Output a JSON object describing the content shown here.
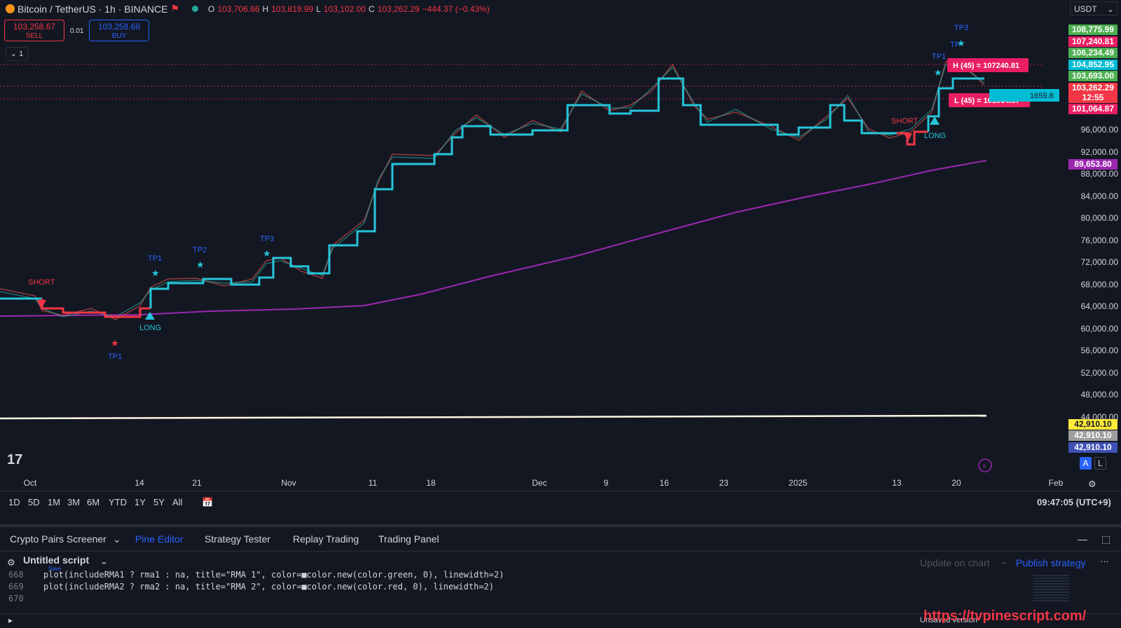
{
  "header": {
    "symbol": "Bitcoin / TetherUS · 1h · BINANCE",
    "o_label": "O",
    "o_value": "103,706.66",
    "h_label": "H",
    "h_value": "103,819.99",
    "l_label": "L",
    "l_value": "103,102.00",
    "c_label": "C",
    "c_value": "103,262.29",
    "change": "−444.37 (−0.43%)",
    "currency": "USDT"
  },
  "trade": {
    "sell_price": "103,258.67",
    "sell_label": "SELL",
    "qty": "0.01",
    "buy_price": "103,258.68",
    "buy_label": "BUY",
    "collapse": "⌄ 1"
  },
  "price_axis": {
    "ticks": [
      "96,000.00",
      "92,000.00",
      "88,000.00",
      "84,000.00",
      "80,000.00",
      "76,000.00",
      "72,000.00",
      "68,000.00",
      "64,000.00",
      "60,000.00",
      "56,000.00",
      "52,000.00",
      "48,000.00",
      "44,000.00"
    ],
    "tags": [
      {
        "text": "108,775.99",
        "color": "#4caf50"
      },
      {
        "text": "107,240.81",
        "color": "#e91e63"
      },
      {
        "text": "106,234.49",
        "color": "#4caf50"
      },
      {
        "text": "104,852.95",
        "color": "#00bcd4"
      },
      {
        "text": "103,693.00",
        "color": "#4caf50"
      },
      {
        "text": "103,262.29",
        "color": "#f23645"
      },
      {
        "text": "12:55",
        "color": "#f23645"
      },
      {
        "text": "101,064.87",
        "color": "#e91e63"
      },
      {
        "text": "89,653.80",
        "color": "#9c27b0"
      },
      {
        "text": "42,910.10",
        "color": "#ffeb3b"
      },
      {
        "text": "42,910.10",
        "color": "#9e9e9e"
      },
      {
        "text": "42,910.10",
        "color": "#3f51b5"
      }
    ],
    "scale_a": "A",
    "scale_l": "L"
  },
  "chart_labels": {
    "short_1": "SHORT",
    "long_1": "LONG",
    "tp1_down": "TP1",
    "tp1": "TP1",
    "tp2": "TP2",
    "tp3": "TP3",
    "short_2": "SHORT",
    "long_2": "LONG",
    "tp1_b": "TP1",
    "tp2_b": "TP",
    "tp3_b": "TP3",
    "high_label": "H (45) = 107240.81",
    "low_label": "L (45) = 101064.87",
    "cyan_label": "1659.8"
  },
  "time_axis": [
    "Oct",
    "14",
    "21",
    "Nov",
    "11",
    "18",
    "Dec",
    "9",
    "16",
    "23",
    "2025",
    "13",
    "20",
    "Feb"
  ],
  "range_buttons": [
    "1D",
    "5D",
    "1M",
    "3M",
    "6M",
    "YTD",
    "1Y",
    "5Y",
    "All"
  ],
  "clock": "09:47:05 (UTC+9)",
  "bottom_tabs": [
    "Crypto Pairs Screener",
    "Pine Editor",
    "Strategy Tester",
    "Replay Trading",
    "Trading Panel"
  ],
  "editor": {
    "title": "Untitled script",
    "save": "Save",
    "update": "Update on chart",
    "publish": "Publish strategy",
    "lines": [
      {
        "n": "668",
        "t": "plot(includeRMA1 ? rma1 : na, title=\"RMA 1\", color=■color.new(color.green, 0), linewidth=2)"
      },
      {
        "n": "669",
        "t": "plot(includeRMA2 ? rma2 : na, title=\"RMA 2\", color=■color.new(color.red, 0), linewidth=2)"
      },
      {
        "n": "670",
        "t": ""
      }
    ]
  },
  "footer": {
    "status": "Unsaved version",
    "watermark": "https://tvpinescript.com/"
  },
  "colors": {
    "bg": "#131722",
    "cyan": "#26c6da",
    "red": "#f23645",
    "purple": "#9c27b0",
    "green": "#26a69a",
    "blue": "#2962ff"
  }
}
